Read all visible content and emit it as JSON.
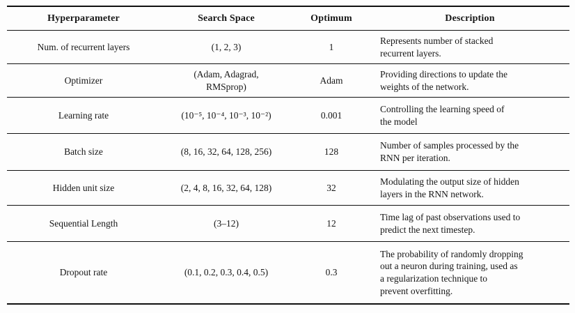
{
  "table": {
    "columns": [
      {
        "label": "Hyperparameter"
      },
      {
        "label": "Search Space"
      },
      {
        "label": "Optimum"
      },
      {
        "label": "Description"
      }
    ],
    "rows": [
      {
        "hyperparameter": "Num. of recurrent layers",
        "search_space": "(1, 2, 3)",
        "optimum": "1",
        "description": "Represents number of stacked\nrecurrent layers."
      },
      {
        "hyperparameter": "Optimizer",
        "search_space": "(Adam, Adagrad,\nRMSprop)",
        "optimum": "Adam",
        "description": "Providing directions to update the\nweights of the network."
      },
      {
        "hyperparameter": "Learning rate",
        "search_space": "(10⁻⁵, 10⁻⁴, 10⁻³, 10⁻²)",
        "optimum": "0.001",
        "description": "Controlling the learning speed of\nthe model"
      },
      {
        "hyperparameter": "Batch size",
        "search_space": "(8, 16, 32, 64, 128, 256)",
        "optimum": "128",
        "description": "Number of samples processed by the\nRNN per iteration."
      },
      {
        "hyperparameter": "Hidden unit size",
        "search_space": "(2, 4, 8, 16, 32, 64, 128)",
        "optimum": "32",
        "description": "Modulating the output size of hidden\nlayers in the RNN network."
      },
      {
        "hyperparameter": "Sequential Length",
        "search_space": "(3–12)",
        "optimum": "12",
        "description": "Time lag of past observations used to\npredict the next timestep."
      },
      {
        "hyperparameter": "Dropout rate",
        "search_space": "(0.1, 0.2, 0.3, 0.4, 0.5)",
        "optimum": "0.3",
        "description": "The probability of randomly dropping\nout a neuron during training, used as\na regularization technique to\nprevent overfitting."
      }
    ]
  }
}
